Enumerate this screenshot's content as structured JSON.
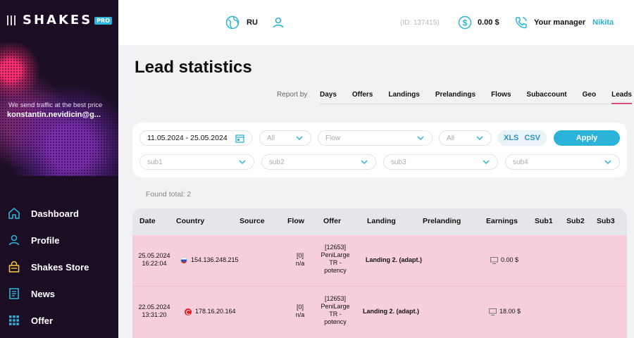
{
  "sidebar": {
    "brand": "SHAKES",
    "badge": "PRO",
    "tagline": "We send traffic at the best price",
    "email": "konstantin.nevidicin@g...",
    "nav": [
      {
        "label": "Dashboard",
        "icon": "home-icon"
      },
      {
        "label": "Profile",
        "icon": "user-icon"
      },
      {
        "label": "Shakes Store",
        "icon": "bag-icon"
      },
      {
        "label": "News",
        "icon": "news-icon"
      },
      {
        "label": "Offer",
        "icon": "grid-icon"
      }
    ]
  },
  "header": {
    "language": "RU",
    "user_id": "(ID: 137415)",
    "balance": "0.00 $",
    "manager_label": "Your manager",
    "manager_name": "Nikita"
  },
  "page": {
    "title": "Lead statistics",
    "report_by_label": "Report by",
    "tabs": [
      "Days",
      "Offers",
      "Landings",
      "Prelandings",
      "Flows",
      "Subaccount",
      "Geo",
      "Leads"
    ],
    "active_tab": "Leads"
  },
  "filters": {
    "date_range": "11.05.2024 - 25.05.2024",
    "select1": "All",
    "flow": "Flow",
    "select3": "All",
    "xls": "XLS",
    "csv": "CSV",
    "apply": "Apply",
    "sub1": "sub1",
    "sub2": "sub2",
    "sub3": "sub3",
    "sub4": "sub4"
  },
  "found_total": "Found total: 2",
  "table": {
    "columns": [
      "Date",
      "Country",
      "Source",
      "Flow",
      "Offer",
      "Landing",
      "Prelanding",
      "Earnings",
      "Sub1",
      "Sub2",
      "Sub3"
    ],
    "rows": [
      {
        "date": "25.05.2024",
        "time": "16:22:04",
        "flag": "ru",
        "ip": "154.136.248.215",
        "flow_id": "[0]",
        "flow_name": "n/a",
        "offer_lines": [
          "[12653]",
          "PeniLarge",
          "TR -",
          "potency"
        ],
        "landing": "Landing 2. (adapt.)",
        "earnings": "0.00 $"
      },
      {
        "date": "22.05.2024",
        "time": "13:31:20",
        "flag": "tr",
        "ip": "178.16.20.164",
        "flow_id": "[0]",
        "flow_name": "n/a",
        "offer_lines": [
          "[12653]",
          "PeniLarge",
          "TR -",
          "potency"
        ],
        "landing": "Landing 2. (adapt.)",
        "earnings": "18.00 $"
      }
    ]
  },
  "colors": {
    "accent": "#2bb3d9",
    "active_tab_underline": "#e14b7c",
    "row_bg": "#f7cfdc",
    "sidebar_bg": "#1b0e24"
  }
}
